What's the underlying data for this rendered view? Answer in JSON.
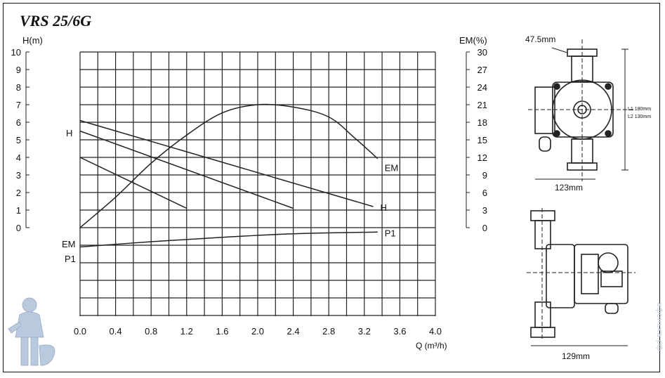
{
  "title": "VRS 25/6G",
  "chart_data": {
    "type": "line",
    "title": "VRS 25/6G",
    "xlabel": "Q (m³/h)",
    "ylabel_left": "H(m)",
    "ylabel_right": "EM(%)",
    "xlim": [
      0,
      4.0
    ],
    "ylim_left": [
      -5,
      10
    ],
    "ylim_right": [
      0,
      30
    ],
    "x_ticks": [
      "0.0",
      "0.4",
      "0.8",
      "1.2",
      "1.6",
      "2.0",
      "2.4",
      "2.8",
      "3.2",
      "3.6",
      "4.0"
    ],
    "y_left_ticks": [
      "0",
      "1",
      "2",
      "3",
      "4",
      "5",
      "6",
      "7",
      "8",
      "9",
      "10"
    ],
    "y_right_ticks": [
      "0",
      "3",
      "6",
      "9",
      "12",
      "15",
      "18",
      "21",
      "24",
      "27",
      "30"
    ],
    "grid": true,
    "series": [
      {
        "name": "H",
        "axis": "left",
        "label_side": "left",
        "points": [
          [
            0.0,
            4.0
          ],
          [
            1.2,
            1.1
          ]
        ]
      },
      {
        "name": "H",
        "axis": "left",
        "label_side": "left",
        "points": [
          [
            0.0,
            5.5
          ],
          [
            2.4,
            1.1
          ]
        ]
      },
      {
        "name": "H",
        "axis": "left",
        "label_side": "end",
        "points": [
          [
            0.0,
            6.1
          ],
          [
            3.3,
            1.2
          ]
        ]
      },
      {
        "name": "EM",
        "axis": "right",
        "label_side": "end",
        "points": [
          [
            0.0,
            0.0
          ],
          [
            0.4,
            5.2
          ],
          [
            0.8,
            11.0
          ],
          [
            1.2,
            15.8
          ],
          [
            1.6,
            19.6
          ],
          [
            2.0,
            21.0
          ],
          [
            2.4,
            20.6
          ],
          [
            2.8,
            18.9
          ],
          [
            3.1,
            15.2
          ],
          [
            3.35,
            11.8
          ]
        ]
      },
      {
        "name": "P1",
        "axis": "left",
        "label_side": "end",
        "points": [
          [
            0.0,
            -1.1
          ],
          [
            0.8,
            -0.8
          ],
          [
            1.6,
            -0.55
          ],
          [
            2.4,
            -0.35
          ],
          [
            3.35,
            -0.25
          ]
        ]
      }
    ],
    "left_labels": [
      "H",
      "EM",
      "P1"
    ]
  },
  "dimensions": {
    "top_width": "47.5mm",
    "side_height_1": "L1 180mm",
    "side_height_2": "L2 130mm",
    "top_view_width": "123mm",
    "side_view_width": "129mm"
  },
  "watermark": "афонька.рф"
}
